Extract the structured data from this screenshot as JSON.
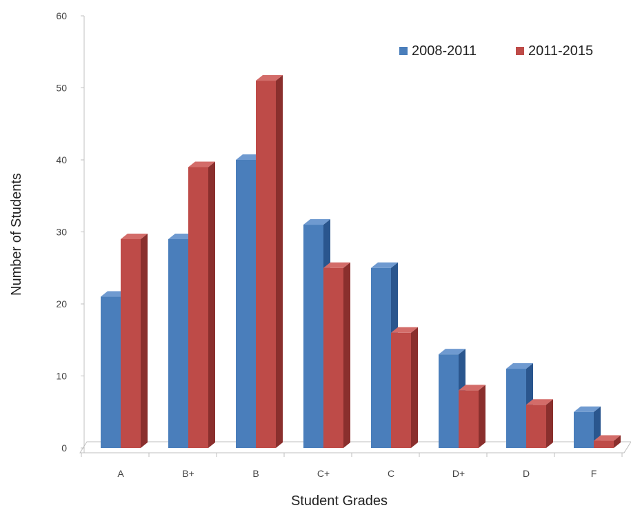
{
  "chart_data": {
    "type": "bar",
    "categories": [
      "A",
      "B+",
      "B",
      "C+",
      "C",
      "D+",
      "D",
      "F"
    ],
    "series": [
      {
        "name": "2008-2011",
        "values": [
          21,
          29,
          40,
          31,
          25,
          13,
          11,
          5
        ],
        "color": "#4a7ebb",
        "side_color": "#2a568e",
        "top_color": "#6f9ad0"
      },
      {
        "name": "2011-2015",
        "values": [
          29,
          39,
          51,
          25,
          16,
          8,
          6,
          1
        ],
        "color": "#be4b48",
        "side_color": "#8a2f2d",
        "top_color": "#d36c69"
      }
    ],
    "xlabel": "Student Grades",
    "ylabel": "Number of Students",
    "ylim": [
      0,
      60
    ],
    "yticks": [
      0,
      10,
      20,
      30,
      40,
      50,
      60
    ],
    "grid": false,
    "legend_position": "top-right",
    "style": "3d-clustered-column"
  }
}
